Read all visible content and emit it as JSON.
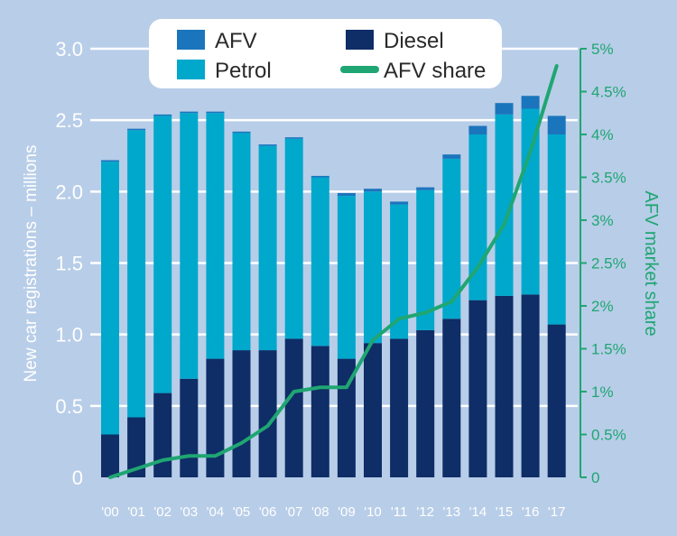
{
  "chart_data": {
    "type": "bar",
    "stacked": true,
    "categories": [
      "'00",
      "'01",
      "'02",
      "'03",
      "'04",
      "'05",
      "'06",
      "'07",
      "'08",
      "'09",
      "'10",
      "'11",
      "'12",
      "'13",
      "'14",
      "'15",
      "'16",
      "'17"
    ],
    "series": [
      {
        "name": "Diesel",
        "color": "#0f2d66",
        "values": [
          0.3,
          0.42,
          0.59,
          0.69,
          0.83,
          0.89,
          0.89,
          0.97,
          0.92,
          0.83,
          0.94,
          0.97,
          1.03,
          1.11,
          1.24,
          1.27,
          1.28,
          1.07
        ]
      },
      {
        "name": "Petrol",
        "color": "#00a8cc",
        "values": [
          1.91,
          2.01,
          1.94,
          1.86,
          1.72,
          1.52,
          1.43,
          1.4,
          1.18,
          1.14,
          1.06,
          0.94,
          0.98,
          1.12,
          1.16,
          1.27,
          1.3,
          1.33
        ]
      },
      {
        "name": "AFV",
        "color": "#1b75bc",
        "values": [
          0.01,
          0.01,
          0.01,
          0.01,
          0.01,
          0.01,
          0.01,
          0.01,
          0.01,
          0.02,
          0.02,
          0.02,
          0.02,
          0.03,
          0.06,
          0.08,
          0.09,
          0.13
        ]
      }
    ],
    "line_series": {
      "name": "AFV share",
      "axis": "right",
      "color": "#1fa672",
      "x": [
        "'00",
        "'01",
        "'02",
        "'03",
        "'04",
        "'05",
        "'06",
        "'07",
        "'08",
        "'09",
        "'10",
        "'11",
        "'12",
        "'13",
        "'14",
        "'15",
        "'16",
        "'17"
      ],
      "values": [
        0.0,
        0.1,
        0.2,
        0.25,
        0.25,
        0.4,
        0.6,
        1.0,
        1.05,
        1.05,
        1.6,
        1.85,
        1.92,
        2.05,
        2.45,
        2.95,
        3.8,
        4.8
      ]
    },
    "ylabel": "New car registrations – millions",
    "ylim": [
      0,
      3.0
    ],
    "yticks": [
      0,
      0.5,
      1.0,
      1.5,
      2.0,
      2.5,
      3.0
    ],
    "ytick_labels": [
      "0",
      "0.5",
      "1.0",
      "1.5",
      "2.0",
      "2.5",
      "3.0"
    ],
    "y2label": "AFV market share",
    "y2lim": [
      0,
      5
    ],
    "y2ticks": [
      0,
      0.5,
      1,
      1.5,
      2,
      2.5,
      3,
      3.5,
      4,
      4.5,
      5
    ],
    "y2tick_labels": [
      "0",
      "0.5%",
      "1%",
      "1.5%",
      "2%",
      "2.5%",
      "3%",
      "3.5%",
      "4%",
      "4.5%",
      "5%"
    ],
    "legend": {
      "position": "top",
      "entries": [
        {
          "label": "AFV",
          "kind": "bar",
          "color": "#1b75bc"
        },
        {
          "label": "Diesel",
          "kind": "bar",
          "color": "#0f2d66"
        },
        {
          "label": "Petrol",
          "kind": "bar",
          "color": "#00a8cc"
        },
        {
          "label": "AFV share",
          "kind": "line",
          "color": "#1fa672"
        }
      ]
    },
    "grid": true
  }
}
